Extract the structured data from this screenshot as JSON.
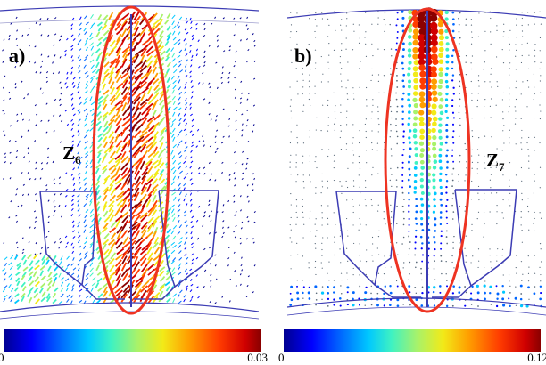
{
  "panels": [
    {
      "label": "a)",
      "zone_label": "Z",
      "zone_sub": "6",
      "colorbar": {
        "min": "0",
        "max": "0.03"
      }
    },
    {
      "label": "b)",
      "zone_label": "Z",
      "zone_sub": "7",
      "colorbar": {
        "min": "0",
        "max": "0.12"
      }
    }
  ],
  "colors": {
    "outline": "#3c3cb4",
    "highlight": "#ee3322",
    "colormap": [
      "#00008f",
      "#0000ff",
      "#0066ff",
      "#00c8ff",
      "#3ff2c2",
      "#a8f26a",
      "#f2ea18",
      "#ff9e00",
      "#ff3c00",
      "#d00000",
      "#8a0000"
    ]
  }
}
